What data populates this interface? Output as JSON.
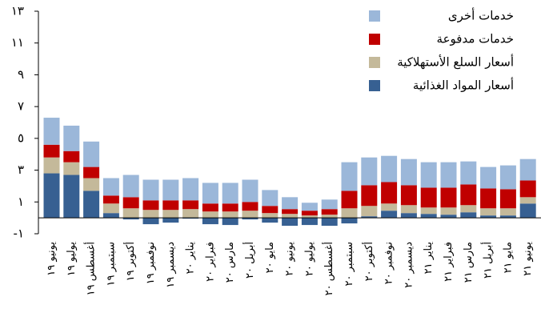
{
  "chart_data": {
    "type": "stacked_bar",
    "categories": [
      "يونيو ١٩",
      "يوليو ١٩",
      "أغسطس ١٩",
      "سبتمبر ١٩",
      "أكتوبر ١٩",
      "نوفمبر ١٩",
      "ديسمبر ١٩",
      "يناير ٢٠",
      "فبراير ٢٠",
      "مارس ٢٠",
      "أبريل ٢٠",
      "مايو ٢٠",
      "يونيو ٢٠",
      "يوليو ٢٠",
      "أغسطس ٢٠",
      "سبتمبر ٢٠",
      "أكتوبر ٢٠",
      "نوفمبر ٢٠",
      "ديسمبر ٢٠",
      "يناير ٢١",
      "فبراير ٢١",
      "مارس ٢١",
      "أبريل ٢١",
      "مايو ٢١",
      "يونيو ٢١"
    ],
    "series": [
      {
        "name": "أسعار المواد الغذائية",
        "color": "#376092",
        "values": [
          2.8,
          2.7,
          1.7,
          0.3,
          -0.1,
          -0.4,
          -0.3,
          -0.05,
          -0.4,
          -0.45,
          -0.1,
          -0.3,
          -0.5,
          -0.45,
          -0.5,
          -0.35,
          0.1,
          0.45,
          0.3,
          0.25,
          0.2,
          0.35,
          0.15,
          0.15,
          0.9
        ]
      },
      {
        "name": "أسعار السلع الأستهلاكية",
        "color": "#c4b99a",
        "values": [
          1.0,
          0.8,
          0.8,
          0.6,
          0.6,
          0.5,
          0.5,
          0.55,
          0.4,
          0.4,
          0.45,
          0.3,
          0.25,
          0.15,
          0.2,
          0.6,
          0.65,
          0.45,
          0.5,
          0.4,
          0.45,
          0.45,
          0.45,
          0.45,
          0.4
        ]
      },
      {
        "name": "خدمات مدفوعة",
        "color": "#c00000",
        "values": [
          0.8,
          0.7,
          0.7,
          0.5,
          0.7,
          0.6,
          0.6,
          0.55,
          0.5,
          0.5,
          0.55,
          0.45,
          0.3,
          0.3,
          0.35,
          1.1,
          1.3,
          1.35,
          1.25,
          1.25,
          1.25,
          1.3,
          1.25,
          1.2,
          1.05
        ]
      },
      {
        "name": "خدمات أخرى",
        "color": "#9bb7d9",
        "values": [
          1.7,
          1.6,
          1.6,
          1.1,
          1.4,
          1.3,
          1.3,
          1.4,
          1.3,
          1.3,
          1.4,
          1.0,
          0.75,
          0.5,
          0.6,
          1.8,
          1.75,
          1.65,
          1.65,
          1.6,
          1.6,
          1.45,
          1.35,
          1.5,
          1.35
        ]
      }
    ],
    "ylim": [
      -1,
      13
    ],
    "yticks": [
      {
        "value": -1,
        "label": "-١"
      },
      {
        "value": 1,
        "label": "١"
      },
      {
        "value": 3,
        "label": "٣"
      },
      {
        "value": 5,
        "label": "٥"
      },
      {
        "value": 7,
        "label": "٧"
      },
      {
        "value": 9,
        "label": "٩"
      },
      {
        "value": 11,
        "label": "١١"
      },
      {
        "value": 13,
        "label": "١٣"
      }
    ],
    "legend": "top-right"
  }
}
